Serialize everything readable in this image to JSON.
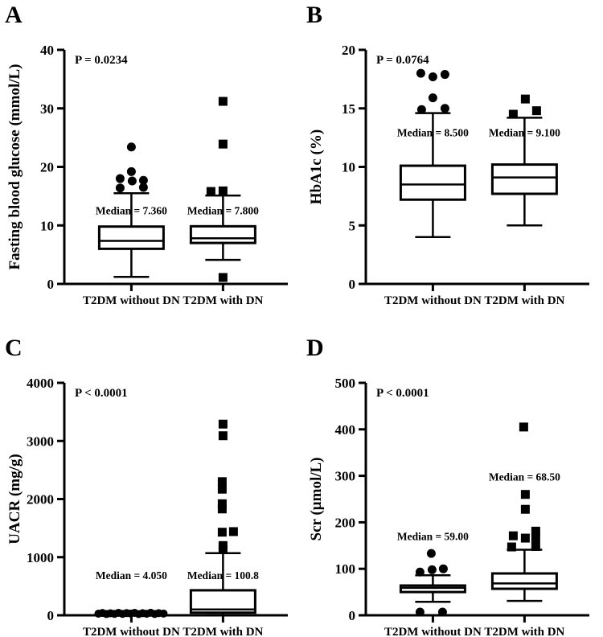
{
  "figure": {
    "background_color": "#ffffff",
    "ink_color": "#000000",
    "description": "Four-panel box-and-whisker comparison of T2DM patients without vs with DN"
  },
  "chart_data": [
    {
      "type": "box",
      "panel_label": "A",
      "p_value_text": "P = 0.0234",
      "ylabel": "Fasting blood glucose (mmol/L)",
      "ylim": [
        0,
        40
      ],
      "yticks": [
        0,
        10,
        20,
        30,
        40
      ],
      "categories": [
        "T2DM without DN",
        "T2DM with DN"
      ],
      "grid": false,
      "groups": [
        {
          "category": "T2DM without DN",
          "marker": "circle",
          "box": {
            "whisker_low": 1.2,
            "q1": 6.0,
            "median": 7.36,
            "q3": 9.8,
            "whisker_high": 15.5
          },
          "median_label": "Median = 7.360",
          "median_label_y": 11.9,
          "outliers": [
            {
              "v": 23.4,
              "dx": 0
            },
            {
              "v": 19.2,
              "dx": 0
            },
            {
              "v": 18.0,
              "dx": -14
            },
            {
              "v": 17.7,
              "dx": 15
            },
            {
              "v": 17.6,
              "dx": 1
            },
            {
              "v": 16.4,
              "dx": -14
            },
            {
              "v": 16.5,
              "dx": 15
            }
          ]
        },
        {
          "category": "T2DM with DN",
          "marker": "square",
          "box": {
            "whisker_low": 4.1,
            "q1": 7.0,
            "median": 7.8,
            "q3": 9.85,
            "whisker_high": 15.1
          },
          "median_label": "Median = 7.800",
          "median_label_y": 11.9,
          "outliers": [
            {
              "v": 31.2,
              "dx": 0
            },
            {
              "v": 23.9,
              "dx": 0
            },
            {
              "v": 15.9,
              "dx": 0
            },
            {
              "v": 15.8,
              "dx": -15
            },
            {
              "v": 1.1,
              "dx": 0
            }
          ]
        }
      ]
    },
    {
      "type": "box",
      "panel_label": "B",
      "p_value_text": "P = 0.0764",
      "ylabel": "HbA1c (%)",
      "ylim": [
        0,
        20
      ],
      "yticks": [
        0,
        5,
        10,
        15,
        20
      ],
      "categories": [
        "T2DM without DN",
        "T2DM with DN"
      ],
      "grid": false,
      "groups": [
        {
          "category": "T2DM without DN",
          "marker": "circle",
          "box": {
            "whisker_low": 4.0,
            "q1": 7.2,
            "median": 8.5,
            "q3": 10.1,
            "whisker_high": 14.6
          },
          "median_label": "Median = 8.500",
          "median_label_y": 12.6,
          "outliers": [
            {
              "v": 18.0,
              "dx": -15
            },
            {
              "v": 17.7,
              "dx": 0
            },
            {
              "v": 17.9,
              "dx": 15
            },
            {
              "v": 15.9,
              "dx": 0
            },
            {
              "v": 14.9,
              "dx": -14
            },
            {
              "v": 15.0,
              "dx": 15
            }
          ]
        },
        {
          "category": "T2DM with DN",
          "marker": "square",
          "box": {
            "whisker_low": 5.0,
            "q1": 7.7,
            "median": 9.1,
            "q3": 10.2,
            "whisker_high": 14.2
          },
          "median_label": "Median = 9.100",
          "median_label_y": 12.6,
          "outliers": [
            {
              "v": 15.8,
              "dx": 1
            },
            {
              "v": 14.8,
              "dx": 15
            },
            {
              "v": 14.5,
              "dx": -14
            }
          ]
        }
      ]
    },
    {
      "type": "box",
      "panel_label": "C",
      "p_value_text": "P < 0.0001",
      "ylabel": "UACR (mg/g)",
      "ylim": [
        0,
        4000
      ],
      "yticks": [
        0,
        1000,
        2000,
        3000,
        4000
      ],
      "categories": [
        "T2DM without DN",
        "T2DM with DN"
      ],
      "grid": false,
      "groups": [
        {
          "category": "T2DM without DN",
          "marker": "circle",
          "box": {
            "whisker_low": 1,
            "q1": 2,
            "median": 4.05,
            "q3": 30,
            "whisker_high": 55
          },
          "median_label": "Median = 4.050",
          "median_label_y": 620,
          "outliers": [],
          "points": [
            {
              "v": 28,
              "dx": -41
            },
            {
              "v": 40,
              "dx": -36
            },
            {
              "v": 22,
              "dx": -31
            },
            {
              "v": 35,
              "dx": -26
            },
            {
              "v": 25,
              "dx": -21
            },
            {
              "v": 42,
              "dx": -16
            },
            {
              "v": 24,
              "dx": -11
            },
            {
              "v": 38,
              "dx": -6
            },
            {
              "v": 30,
              "dx": -1
            },
            {
              "v": 41,
              "dx": 4
            },
            {
              "v": 21,
              "dx": 9
            },
            {
              "v": 36,
              "dx": 14
            },
            {
              "v": 26,
              "dx": 19
            },
            {
              "v": 43,
              "dx": 24
            },
            {
              "v": 23,
              "dx": 29
            },
            {
              "v": 37,
              "dx": 34
            },
            {
              "v": 30,
              "dx": 40
            }
          ]
        },
        {
          "category": "T2DM with DN",
          "marker": "square",
          "box": {
            "whisker_low": 5,
            "q1": 45,
            "median": 100.8,
            "q3": 430,
            "whisker_high": 1070
          },
          "median_label": "Median = 100.8",
          "median_label_y": 620,
          "outliers": [
            {
              "v": 3290,
              "dx": 0
            },
            {
              "v": 3090,
              "dx": 0
            },
            {
              "v": 2300,
              "dx": -1
            },
            {
              "v": 2170,
              "dx": -1
            },
            {
              "v": 1920,
              "dx": -1
            },
            {
              "v": 1830,
              "dx": -1
            },
            {
              "v": 1440,
              "dx": 13
            },
            {
              "v": 1430,
              "dx": -1
            },
            {
              "v": 1200,
              "dx": 0
            },
            {
              "v": 1130,
              "dx": 0
            }
          ]
        }
      ]
    },
    {
      "type": "box",
      "panel_label": "D",
      "p_value_text": "P < 0.0001",
      "ylabel": "Scr (µmol/L)",
      "ylim": [
        0,
        500
      ],
      "yticks": [
        0,
        100,
        200,
        300,
        400,
        500
      ],
      "categories": [
        "T2DM without DN",
        "T2DM with DN"
      ],
      "grid": false,
      "groups": [
        {
          "category": "T2DM without DN",
          "marker": "circle",
          "box": {
            "whisker_low": 29,
            "q1": 50,
            "median": 59,
            "q3": 64,
            "whisker_high": 86
          },
          "median_label": "Median = 59.00",
          "median_label_y": 162,
          "outliers": [
            {
              "v": 133,
              "dx": -2
            },
            {
              "v": 100,
              "dx": 13
            },
            {
              "v": 98,
              "dx": -1
            },
            {
              "v": 93,
              "dx": -16
            },
            {
              "v": 7,
              "dx": -16
            },
            {
              "v": 7,
              "dx": 12
            }
          ]
        },
        {
          "category": "T2DM with DN",
          "marker": "square",
          "box": {
            "whisker_low": 31,
            "q1": 57,
            "median": 68.5,
            "q3": 90,
            "whisker_high": 141
          },
          "median_label": "Median = 68.50",
          "median_label_y": 290,
          "outliers": [
            {
              "v": 405,
              "dx": -1
            },
            {
              "v": 260,
              "dx": 1
            },
            {
              "v": 228,
              "dx": 1
            },
            {
              "v": 181,
              "dx": 14
            },
            {
              "v": 171,
              "dx": -14
            },
            {
              "v": 167,
              "dx": 14
            },
            {
              "v": 166,
              "dx": 1
            },
            {
              "v": 148,
              "dx": 14
            },
            {
              "v": 147,
              "dx": -16
            }
          ]
        }
      ]
    }
  ]
}
